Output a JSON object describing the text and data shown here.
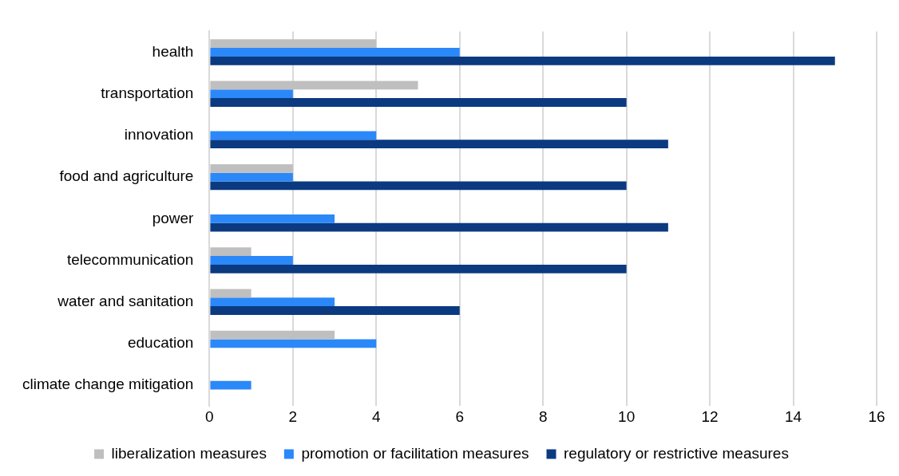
{
  "chart_data": {
    "type": "bar",
    "orientation": "horizontal",
    "categories": [
      "health",
      "transportation",
      "innovation",
      "food and agriculture",
      "power",
      "telecommunication",
      "water and sanitation",
      "education",
      "climate change mitigation"
    ],
    "series": [
      {
        "name": "liberalization measures",
        "color": "#bfbfbf",
        "values": [
          4,
          5,
          0,
          2,
          0,
          1,
          1,
          3,
          0
        ]
      },
      {
        "name": "promotion or facilitation measures",
        "color": "#2b88f8",
        "values": [
          6,
          2,
          4,
          2,
          3,
          2,
          3,
          4,
          1
        ]
      },
      {
        "name": "regulatory or restrictive measures",
        "color": "#0b3a80",
        "values": [
          15,
          10,
          11,
          10,
          11,
          10,
          6,
          0,
          0
        ]
      }
    ],
    "xlim": [
      0,
      16
    ],
    "xticks": [
      0,
      2,
      4,
      6,
      8,
      10,
      12,
      14,
      16
    ],
    "grid": "x",
    "legend": "bottom"
  }
}
